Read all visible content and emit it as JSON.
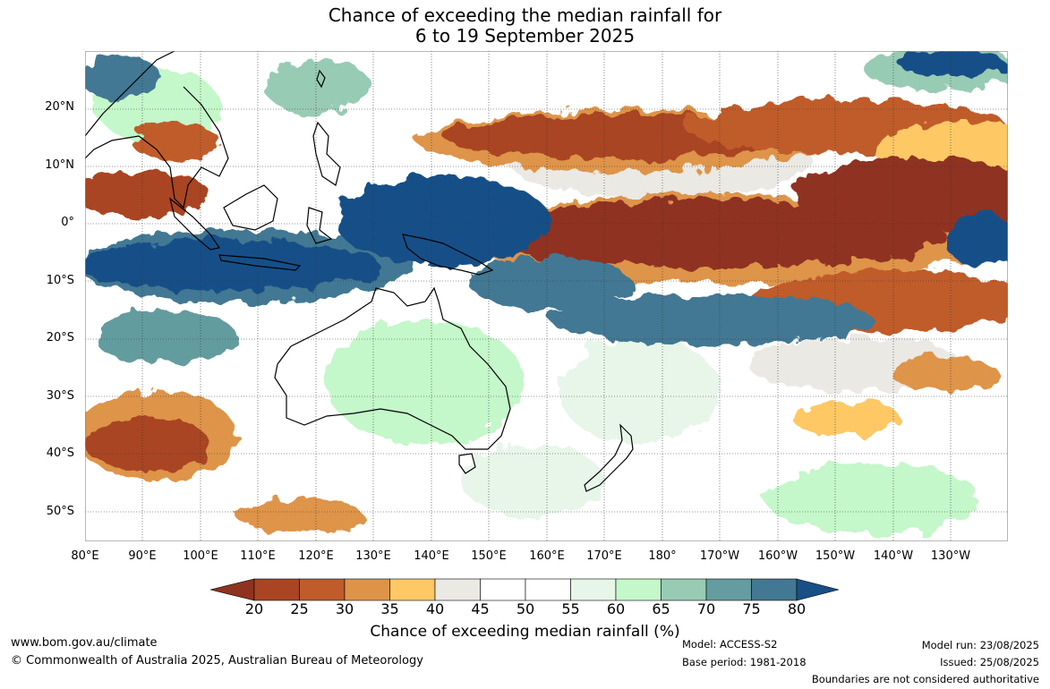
{
  "title": {
    "line1": "Chance of exceeding the median rainfall for",
    "line2": "6 to 19 September 2025"
  },
  "map": {
    "lat_labels": [
      "20°N",
      "10°N",
      "0°",
      "10°S",
      "20°S",
      "30°S",
      "40°S",
      "50°S"
    ],
    "lon_labels": [
      "80°E",
      "90°E",
      "100°E",
      "110°E",
      "120°E",
      "130°E",
      "140°E",
      "150°E",
      "160°E",
      "170°E",
      "180°",
      "170°W",
      "160°W",
      "150°W",
      "140°W",
      "130°W"
    ]
  },
  "colorbar": {
    "title": "Chance of exceeding median rainfall (%)",
    "ticks": [
      "20",
      "25",
      "30",
      "35",
      "40",
      "45",
      "50",
      "55",
      "60",
      "65",
      "70",
      "75",
      "80"
    ],
    "colors": [
      "#8f3220",
      "#a94523",
      "#c05b2b",
      "#de9448",
      "#fec865",
      "#ebe9e4",
      "#ffffff",
      "#ffffff",
      "#e7f6e9",
      "#c4f7c9",
      "#98cbb4",
      "#649c9f",
      "#427893",
      "#194f87"
    ]
  },
  "footer": {
    "website": "www.bom.gov.au/climate",
    "copyright": "© Commonwealth of Australia 2025, Australian Bureau of Meteorology",
    "model": "Model: ACCESS-S2",
    "base_period": "Base period: 1981-2018",
    "model_run": "Model run: 23/08/2025",
    "issued": "Issued: 25/08/2025",
    "disclaimer": "Boundaries are not considered authoritative"
  }
}
